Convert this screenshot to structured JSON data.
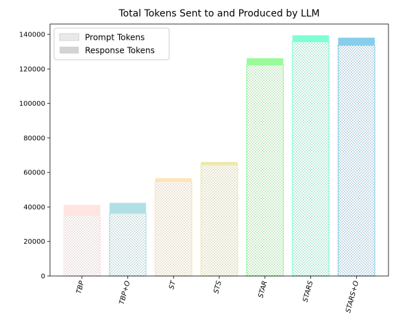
{
  "chart_data": {
    "type": "bar",
    "stacked": true,
    "title": "Total Tokens Sent to and Produced by LLM",
    "xlabel": "",
    "ylabel": "",
    "categories": [
      "TBP",
      "TBP+O",
      "ST",
      "STS",
      "STAR",
      "STARS",
      "STARS+O"
    ],
    "colors": [
      "#ffe4e1",
      "#b0e0e6",
      "#ffe4b5",
      "#eee8aa",
      "#98fb98",
      "#7fffd4",
      "#87ceeb"
    ],
    "series": [
      {
        "name": "Prompt Tokens",
        "pattern": "dotted-hatch",
        "values": [
          35200,
          36300,
          54800,
          64500,
          122300,
          135700,
          133700
        ]
      },
      {
        "name": "Response Tokens",
        "pattern": "solid",
        "values": [
          6000,
          6100,
          1900,
          1600,
          3900,
          3800,
          4400
        ]
      }
    ],
    "ylim": [
      0,
      146000
    ],
    "yticks": [
      0,
      20000,
      40000,
      60000,
      80000,
      100000,
      120000,
      140000
    ],
    "grid": false,
    "legend": {
      "position": "top-left",
      "entries": [
        {
          "label": "Prompt Tokens",
          "swatch": "hatched",
          "color": "#d3d3d3"
        },
        {
          "label": "Response Tokens",
          "swatch": "solid",
          "color": "#d3d3d3"
        }
      ]
    }
  }
}
